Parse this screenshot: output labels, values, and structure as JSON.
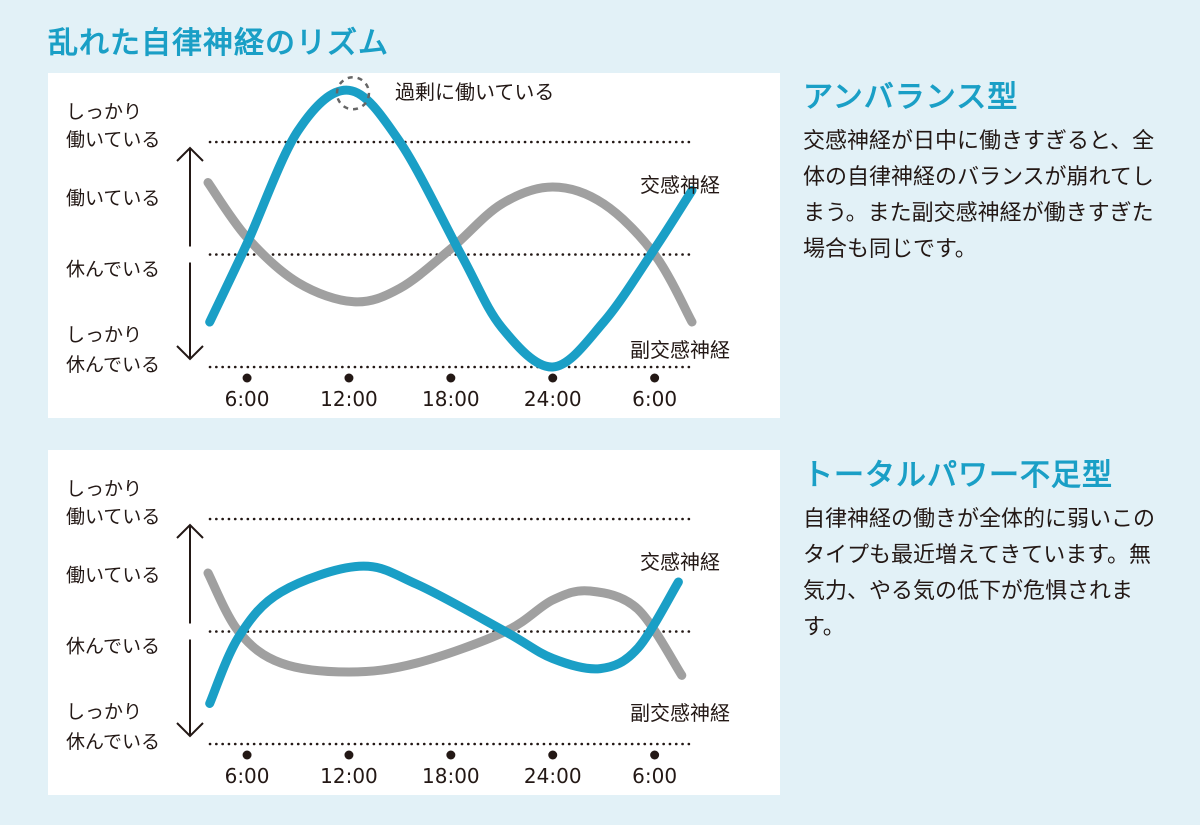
{
  "title": "乱れた自律神経のリズム",
  "colors": {
    "background": "#e2f1f7",
    "accent": "#1a9fc6",
    "sympathetic": "#1a9fc6",
    "parasympathetic": "#a0a0a0",
    "text": "#231815"
  },
  "y_level_labels": {
    "strong_work": [
      "しっかり",
      "働いている"
    ],
    "work": "働いている",
    "rest": "休んでいる",
    "strong_rest": [
      "しっかり",
      "休んでいる"
    ]
  },
  "sections": [
    {
      "heading": "アンバランス型",
      "body": "交感神経が日中に働きすぎると、全体の自律神経のバランスが崩れてしまう。また副交感神経が働きすぎた場合も同じです。"
    },
    {
      "heading": "トータルパワー不足型",
      "body": "自律神経の働きが全体的に弱いこのタイプも最近増えてきています。無気力、やる気の低下が危惧されます。"
    }
  ],
  "chart_data": [
    {
      "type": "line",
      "title": "アンバランス型",
      "xlabel": "",
      "ylabel": "",
      "x_ticks": [
        6,
        12,
        18,
        24,
        30
      ],
      "x_tick_labels": [
        "6:00",
        "12:00",
        "18:00",
        "24:00",
        "6:00"
      ],
      "xlim": [
        3.7,
        32.2
      ],
      "ylim": [
        0,
        2
      ],
      "y_reference_lines": [
        0,
        1,
        2
      ],
      "annotation": "過剰に働いている",
      "annotation_point": [
        12,
        2.46
      ],
      "series": [
        {
          "name": "交感神経",
          "x": [
            3.8,
            6,
            9,
            12,
            15,
            18.6,
            21,
            24,
            27,
            30,
            32.2
          ],
          "y": [
            0.4,
            1.1,
            2.1,
            2.46,
            2.0,
            1.0,
            0.35,
            0.0,
            0.4,
            1.05,
            1.57
          ]
        },
        {
          "name": "副交感神経",
          "x": [
            3.7,
            6,
            9,
            12.3,
            15,
            18,
            21,
            24,
            27,
            30,
            32.2
          ],
          "y": [
            1.64,
            1.15,
            0.75,
            0.58,
            0.7,
            1.05,
            1.45,
            1.6,
            1.45,
            1.0,
            0.4
          ]
        }
      ]
    },
    {
      "type": "line",
      "title": "トータルパワー不足型",
      "xlabel": "",
      "ylabel": "",
      "x_ticks": [
        6,
        12,
        18,
        24,
        30
      ],
      "x_tick_labels": [
        "6:00",
        "12:00",
        "18:00",
        "24:00",
        "6:00"
      ],
      "xlim": [
        3.7,
        32.2
      ],
      "ylim": [
        0,
        2
      ],
      "y_reference_lines": [
        0,
        1,
        2
      ],
      "series": [
        {
          "name": "交感神経",
          "x": [
            3.8,
            5.5,
            8,
            12.6,
            16,
            21.2,
            24,
            26.8,
            29,
            31.4
          ],
          "y": [
            0.36,
            0.95,
            1.35,
            1.58,
            1.42,
            1.0,
            0.76,
            0.67,
            0.85,
            1.44
          ]
        },
        {
          "name": "副交感神経",
          "x": [
            3.7,
            5.5,
            8,
            12,
            16,
            21.2,
            24,
            26.2,
            29,
            31.6
          ],
          "y": [
            1.52,
            1.0,
            0.72,
            0.64,
            0.72,
            1.0,
            1.28,
            1.36,
            1.2,
            0.61
          ]
        }
      ]
    }
  ]
}
